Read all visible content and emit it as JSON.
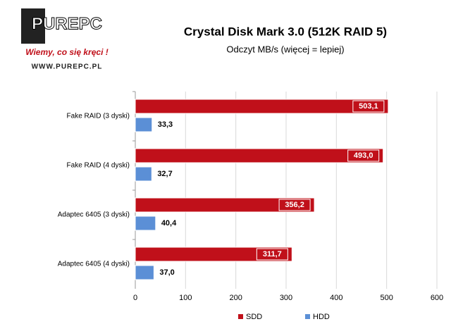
{
  "chart_data": {
    "type": "hbar",
    "logo": {
      "name": "PUREPC",
      "slogan": "Wiemy, co się kręci !",
      "url": "WWW.PUREPC.PL"
    },
    "title": "Crystal Disk Mark 3.0 (512K RAID 5)",
    "subtitle": "Odczyt MB/s (więcej = lepiej)",
    "categories": [
      "Fake RAID (3 dyski)",
      "Fake RAID (4 dyski)",
      "Adaptec 6405 (3 dyski)",
      "Adaptec 6405 (4 dyski)"
    ],
    "series": [
      {
        "name": "SDD",
        "color": "#c0101a",
        "values": [
          503.1,
          493.0,
          356.2,
          311.7
        ],
        "value_labels": [
          "503,1",
          "493,0",
          "356,2",
          "311,7"
        ]
      },
      {
        "name": "HDD",
        "color": "#5b8fd6",
        "values": [
          33.3,
          32.7,
          40.4,
          37.0
        ],
        "value_labels": [
          "33,3",
          "32,7",
          "40,4",
          "37,0"
        ]
      }
    ],
    "xlim": [
      0,
      600
    ],
    "xticks": [
      0,
      100,
      200,
      300,
      400,
      500,
      600
    ],
    "grid": true,
    "legend": "bottom"
  }
}
